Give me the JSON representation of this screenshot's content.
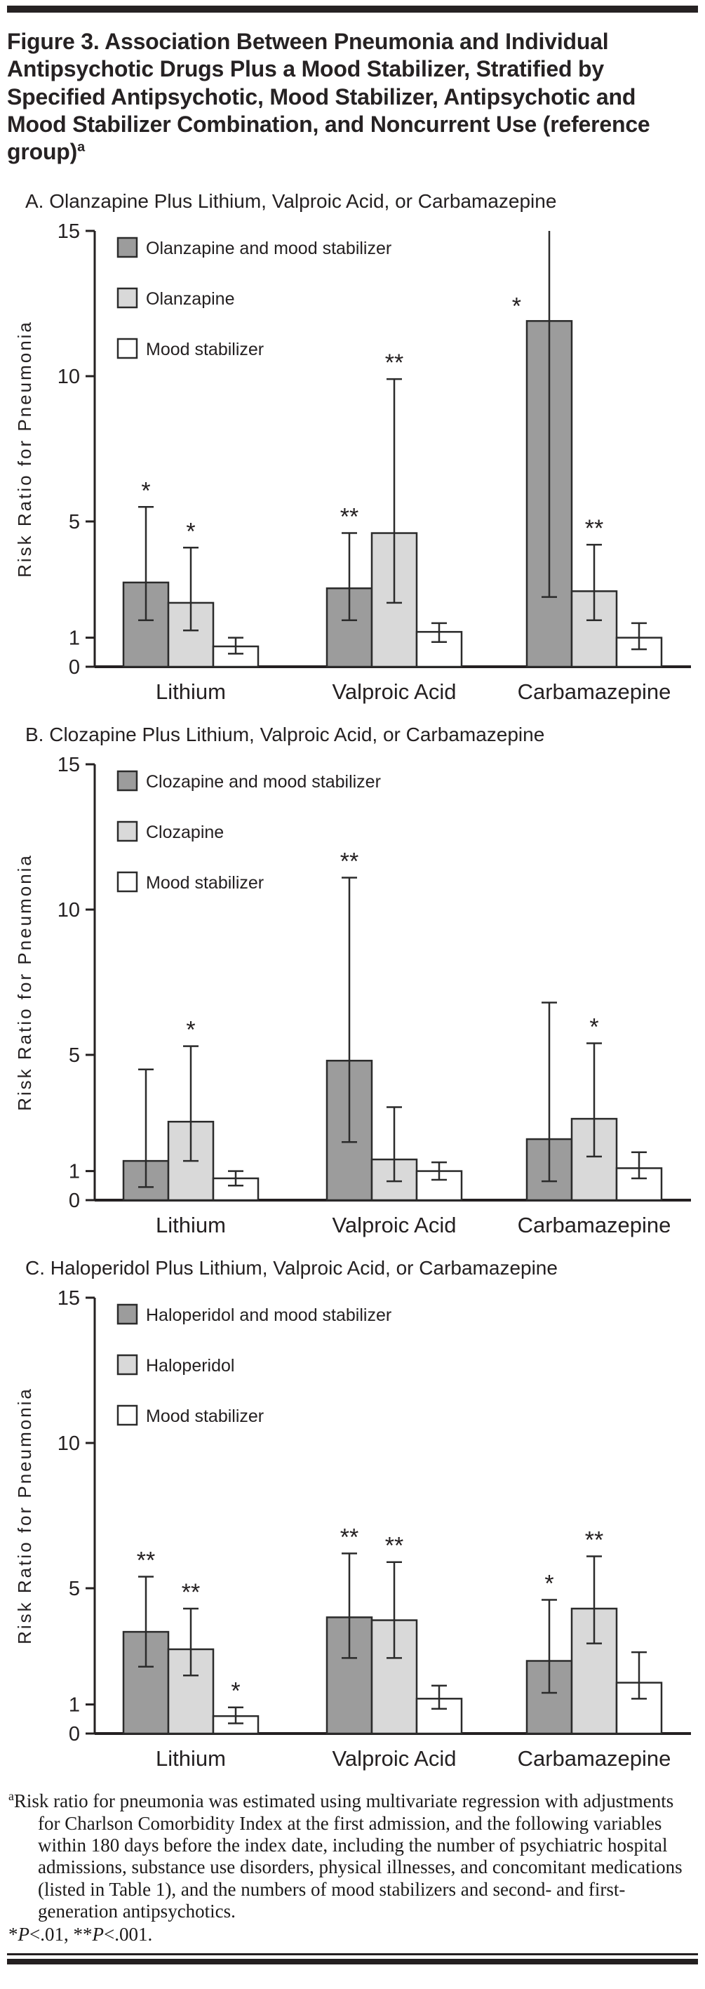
{
  "header": {
    "title": "Figure 3. Association Between Pneumonia and Individual Antipsychotic Drugs Plus a Mood Stabilizer, Stratified by Specified Antipsychotic, Mood Stabilizer, Antipsychotic and Mood Stabilizer Combination, and Noncurrent Use (reference group)",
    "title_sup": "a"
  },
  "colors": {
    "ink": "#242021",
    "bar_dark": "#9c9c9c",
    "bar_light": "#d9d9d9",
    "bar_white": "#ffffff",
    "bar_outline": "#2b2b2b"
  },
  "chart_data": [
    {
      "panel": "A",
      "type": "bar",
      "title": "A. Olanzapine Plus Lithium, Valproic Acid, or Carbamazepine",
      "ylabel": "Risk Ratio for Pneumonia",
      "ylim": [
        0,
        15
      ],
      "yticks": [
        0,
        1,
        5,
        10,
        15
      ],
      "grid": false,
      "legend_position": "top-left-inside",
      "categories": [
        "Lithium",
        "Valproic Acid",
        "Carbamazepine"
      ],
      "series": [
        {
          "name": "Olanzapine and mood stabilizer",
          "fill": "dark",
          "values": [
            2.9,
            2.7,
            11.9
          ],
          "ci_low": [
            1.6,
            1.6,
            2.4
          ],
          "ci_high": [
            5.5,
            4.6,
            15
          ],
          "sig": [
            "*",
            "**",
            "*"
          ]
        },
        {
          "name": "Olanzapine",
          "fill": "light",
          "values": [
            2.2,
            4.6,
            2.6
          ],
          "ci_low": [
            1.25,
            2.2,
            1.6
          ],
          "ci_high": [
            4.1,
            9.9,
            4.2
          ],
          "sig": [
            "*",
            "**",
            "**"
          ]
        },
        {
          "name": "Mood stabilizer",
          "fill": "white",
          "values": [
            0.7,
            1.2,
            1.0
          ],
          "ci_low": [
            0.45,
            0.85,
            0.6
          ],
          "ci_high": [
            1.0,
            1.5,
            1.5
          ],
          "sig": [
            "",
            "",
            ""
          ]
        }
      ]
    },
    {
      "panel": "B",
      "type": "bar",
      "title": "B. Clozapine Plus Lithium, Valproic Acid, or Carbamazepine",
      "ylabel": "Risk Ratio for Pneumonia",
      "ylim": [
        0,
        15
      ],
      "yticks": [
        0,
        1,
        5,
        10,
        15
      ],
      "grid": false,
      "legend_position": "top-left-inside",
      "categories": [
        "Lithium",
        "Valproic Acid",
        "Carbamazepine"
      ],
      "series": [
        {
          "name": "Clozapine and mood stabilizer",
          "fill": "dark",
          "values": [
            1.35,
            4.8,
            2.1
          ],
          "ci_low": [
            0.45,
            2.0,
            0.65
          ],
          "ci_high": [
            4.5,
            11.1,
            6.8
          ],
          "sig": [
            "",
            "**",
            ""
          ]
        },
        {
          "name": "Clozapine",
          "fill": "light",
          "values": [
            2.7,
            1.4,
            2.8
          ],
          "ci_low": [
            1.35,
            0.65,
            1.5
          ],
          "ci_high": [
            5.3,
            3.2,
            5.4
          ],
          "sig": [
            "*",
            "",
            "*"
          ]
        },
        {
          "name": "Mood stabilizer",
          "fill": "white",
          "values": [
            0.75,
            1.0,
            1.1
          ],
          "ci_low": [
            0.5,
            0.7,
            0.75
          ],
          "ci_high": [
            1.0,
            1.3,
            1.65
          ],
          "sig": [
            "",
            "",
            ""
          ]
        }
      ]
    },
    {
      "panel": "C",
      "type": "bar",
      "title": "C. Haloperidol Plus Lithium, Valproic Acid, or Carbamazepine",
      "ylabel": "Risk Ratio for Pneumonia",
      "ylim": [
        0,
        15
      ],
      "yticks": [
        0,
        1,
        5,
        10,
        15
      ],
      "grid": false,
      "legend_position": "top-left-inside",
      "categories": [
        "Lithium",
        "Valproic Acid",
        "Carbamazepine"
      ],
      "series": [
        {
          "name": "Haloperidol and mood stabilizer",
          "fill": "dark",
          "values": [
            3.5,
            4.0,
            2.5
          ],
          "ci_low": [
            2.3,
            2.6,
            1.4
          ],
          "ci_high": [
            5.4,
            6.2,
            4.6
          ],
          "sig": [
            "**",
            "**",
            "*"
          ]
        },
        {
          "name": "Haloperidol",
          "fill": "light",
          "values": [
            2.9,
            3.9,
            4.3
          ],
          "ci_low": [
            2.0,
            2.6,
            3.1
          ],
          "ci_high": [
            4.3,
            5.9,
            6.1
          ],
          "sig": [
            "**",
            "**",
            "**"
          ]
        },
        {
          "name": "Mood stabilizer",
          "fill": "white",
          "values": [
            0.6,
            1.2,
            1.75
          ],
          "ci_low": [
            0.35,
            0.85,
            1.2
          ],
          "ci_high": [
            0.9,
            1.65,
            2.8
          ],
          "sig": [
            "*",
            "",
            ""
          ]
        }
      ]
    }
  ],
  "footnote": {
    "sup": "a",
    "text": "Risk ratio for pneumonia was estimated using multivariate regression with adjustments for Charlson Comorbidity Index at the first admission, and the following variables within 180 days before the index date, including the number of psychiatric hospital admissions, substance use disorders, physical illnesses, and concomitant medications (listed in Table 1), and the numbers of mood stabilizers and second- and first-generation antipsychotics.",
    "sig": {
      "s1": "*",
      "p1": "P",
      "r1": "<.01, **",
      "p2": "P",
      "r2": "<.001."
    }
  }
}
